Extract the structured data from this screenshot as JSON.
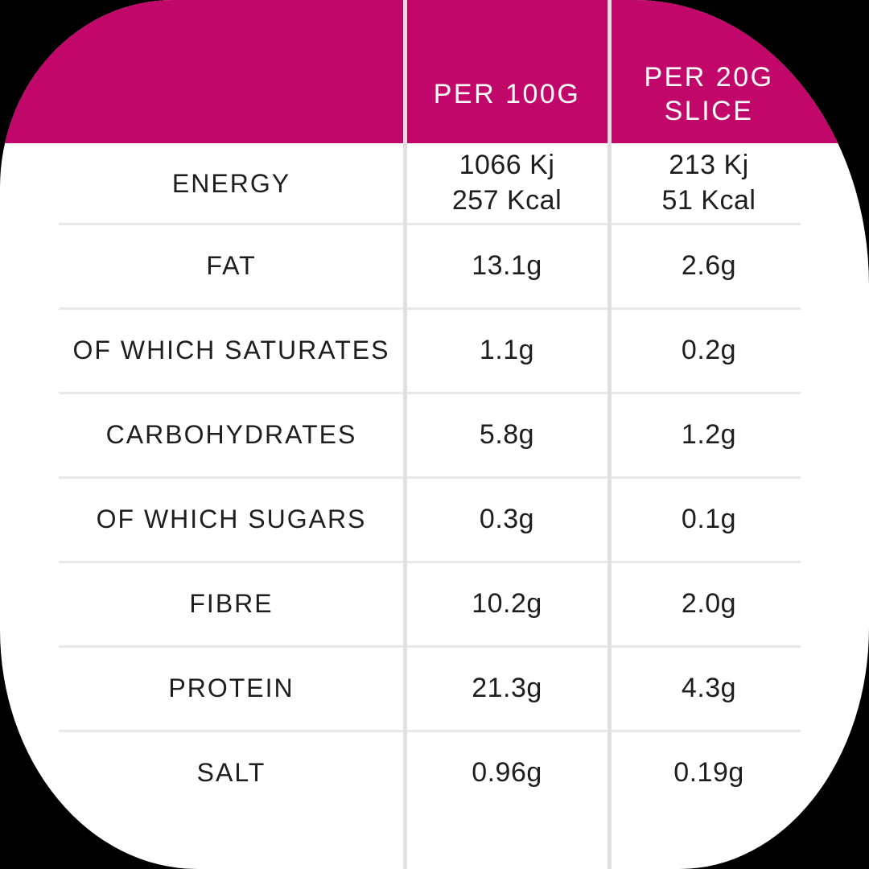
{
  "chart_data": {
    "type": "table",
    "columns": [
      "",
      "PER 100G",
      "PER 20G SLICE"
    ],
    "rows": [
      [
        "ENERGY",
        "1066 Kj 257 Kcal",
        "213 Kj 51 Kcal"
      ],
      [
        "FAT",
        "13.1g",
        "2.6g"
      ],
      [
        "OF WHICH SATURATES",
        "1.1g",
        "0.2g"
      ],
      [
        "CARBOHYDRATES",
        "5.8g",
        "1.2g"
      ],
      [
        "OF WHICH SUGARS",
        "0.3g",
        "0.1g"
      ],
      [
        "FIBRE",
        "10.2g",
        "2.0g"
      ],
      [
        "PROTEIN",
        "21.3g",
        "4.3g"
      ],
      [
        "SALT",
        "0.96g",
        "0.19g"
      ]
    ],
    "legend_position": "none",
    "grid": "light-gray row and column separators"
  },
  "header": {
    "per_100g": "PER 100G",
    "per_20g_line1": "PER 20G",
    "per_20g_line2": "SLICE"
  },
  "rows": [
    {
      "label": "ENERGY",
      "per100_l1": "1066 Kj",
      "per100_l2": "257 Kcal",
      "per20_l1": "213 Kj",
      "per20_l2": "51 Kcal"
    },
    {
      "label": "FAT",
      "per100_l1": "13.1g",
      "per20_l1": "2.6g"
    },
    {
      "label": "OF WHICH SATURATES",
      "per100_l1": "1.1g",
      "per20_l1": "0.2g"
    },
    {
      "label": "CARBOHYDRATES",
      "per100_l1": "5.8g",
      "per20_l1": "1.2g"
    },
    {
      "label": "OF WHICH SUGARS",
      "per100_l1": "0.3g",
      "per20_l1": "0.1g"
    },
    {
      "label": "FIBRE",
      "per100_l1": "10.2g",
      "per20_l1": "2.0g"
    },
    {
      "label": "PROTEIN",
      "per100_l1": "21.3g",
      "per20_l1": "4.3g"
    },
    {
      "label": "SALT",
      "per100_l1": "0.96g",
      "per20_l1": "0.19g"
    }
  ],
  "colors": {
    "accent": "#c1076a",
    "text": "#1e1e1e",
    "header-text": "#ffffff",
    "vline": "#e3dfe1",
    "hline": "#e9e7e8",
    "panel": "#ffffff",
    "backdrop": "#000000"
  }
}
